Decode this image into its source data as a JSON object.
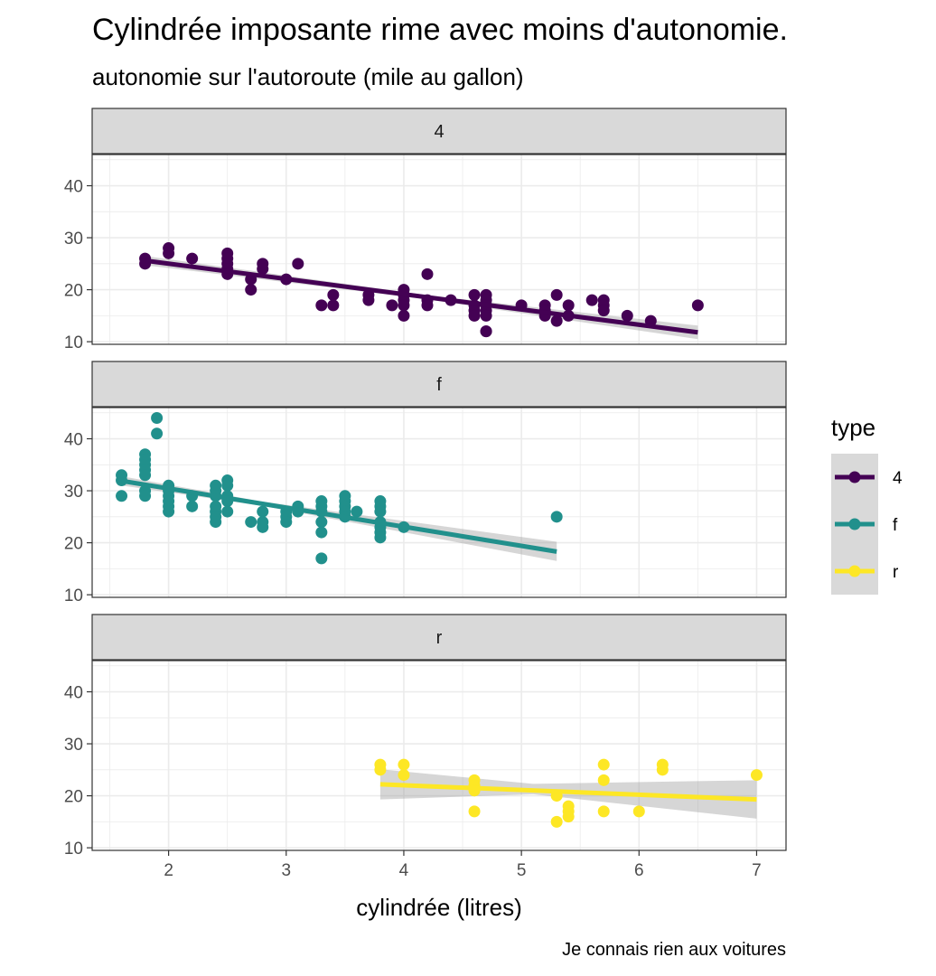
{
  "chart_data": {
    "type": "scatter",
    "title": "Cylindrée imposante rime avec moins d'autonomie.",
    "subtitle": "autonomie sur l'autoroute (mile au gallon)",
    "xlabel": "cylindrée (litres)",
    "ylabel": "",
    "caption": "Je connais rien aux voitures",
    "xlim": [
      1.35,
      7.25
    ],
    "ylim": [
      9.5,
      46.0
    ],
    "x_ticks": [
      2,
      3,
      4,
      5,
      6,
      7
    ],
    "y_ticks": [
      10,
      20,
      30,
      40
    ],
    "grid": true,
    "legend": {
      "title": "type",
      "position": "right",
      "entries": [
        "4",
        "f",
        "r"
      ]
    },
    "panels": [
      {
        "name": "4",
        "color": "#440154",
        "points": [
          [
            1.8,
            26
          ],
          [
            1.8,
            25
          ],
          [
            2.0,
            28
          ],
          [
            2.0,
            27
          ],
          [
            2.2,
            26
          ],
          [
            2.5,
            27
          ],
          [
            2.5,
            26
          ],
          [
            2.5,
            25
          ],
          [
            2.5,
            24
          ],
          [
            2.5,
            23
          ],
          [
            2.7,
            22
          ],
          [
            2.7,
            20
          ],
          [
            2.8,
            25
          ],
          [
            2.8,
            24
          ],
          [
            3.0,
            22
          ],
          [
            3.1,
            25
          ],
          [
            3.3,
            17
          ],
          [
            3.4,
            19
          ],
          [
            3.4,
            17
          ],
          [
            3.7,
            19
          ],
          [
            3.7,
            18
          ],
          [
            3.9,
            17
          ],
          [
            4.0,
            20
          ],
          [
            4.0,
            19
          ],
          [
            4.0,
            18
          ],
          [
            4.0,
            17
          ],
          [
            4.0,
            15
          ],
          [
            4.2,
            23
          ],
          [
            4.2,
            18
          ],
          [
            4.2,
            17
          ],
          [
            4.4,
            18
          ],
          [
            4.6,
            19
          ],
          [
            4.6,
            17
          ],
          [
            4.6,
            16
          ],
          [
            4.6,
            15
          ],
          [
            4.7,
            19
          ],
          [
            4.7,
            18
          ],
          [
            4.7,
            17
          ],
          [
            4.7,
            16
          ],
          [
            4.7,
            15
          ],
          [
            4.7,
            12
          ],
          [
            4.7,
            12
          ],
          [
            5.0,
            17
          ],
          [
            5.2,
            17
          ],
          [
            5.2,
            16
          ],
          [
            5.2,
            15
          ],
          [
            5.3,
            19
          ],
          [
            5.3,
            14
          ],
          [
            5.4,
            17
          ],
          [
            5.4,
            15
          ],
          [
            5.6,
            18
          ],
          [
            5.7,
            18
          ],
          [
            5.7,
            17
          ],
          [
            5.7,
            16
          ],
          [
            5.9,
            15
          ],
          [
            6.1,
            14
          ],
          [
            6.5,
            17
          ]
        ],
        "fit": {
          "x": [
            1.8,
            6.5
          ],
          "y": [
            25.6,
            11.8
          ]
        },
        "band": {
          "x": [
            1.8,
            4.15,
            6.5
          ],
          "lower": [
            24.7,
            18.3,
            10.5
          ],
          "upper": [
            26.5,
            19.1,
            13.1
          ]
        }
      },
      {
        "name": "f",
        "color": "#21908C",
        "points": [
          [
            1.6,
            33
          ],
          [
            1.6,
            32
          ],
          [
            1.6,
            29
          ],
          [
            1.8,
            37
          ],
          [
            1.8,
            36
          ],
          [
            1.8,
            35
          ],
          [
            1.8,
            34
          ],
          [
            1.8,
            33
          ],
          [
            1.8,
            30
          ],
          [
            1.8,
            29
          ],
          [
            1.9,
            44
          ],
          [
            1.9,
            41
          ],
          [
            2.0,
            31
          ],
          [
            2.0,
            30
          ],
          [
            2.0,
            29
          ],
          [
            2.0,
            28
          ],
          [
            2.0,
            27
          ],
          [
            2.0,
            26
          ],
          [
            2.2,
            29
          ],
          [
            2.2,
            27
          ],
          [
            2.4,
            31
          ],
          [
            2.4,
            30
          ],
          [
            2.4,
            29
          ],
          [
            2.4,
            27
          ],
          [
            2.4,
            26
          ],
          [
            2.4,
            25
          ],
          [
            2.4,
            24
          ],
          [
            2.5,
            32
          ],
          [
            2.5,
            31
          ],
          [
            2.5,
            29
          ],
          [
            2.5,
            28
          ],
          [
            2.5,
            26
          ],
          [
            2.7,
            24
          ],
          [
            2.8,
            26
          ],
          [
            2.8,
            24
          ],
          [
            2.8,
            23
          ],
          [
            3.0,
            26
          ],
          [
            3.0,
            25
          ],
          [
            3.0,
            24
          ],
          [
            3.1,
            27
          ],
          [
            3.1,
            26
          ],
          [
            3.3,
            28
          ],
          [
            3.3,
            27
          ],
          [
            3.3,
            26
          ],
          [
            3.3,
            24
          ],
          [
            3.3,
            22
          ],
          [
            3.3,
            17
          ],
          [
            3.5,
            29
          ],
          [
            3.5,
            28
          ],
          [
            3.5,
            27
          ],
          [
            3.5,
            26
          ],
          [
            3.5,
            25
          ],
          [
            3.6,
            26
          ],
          [
            3.8,
            28
          ],
          [
            3.8,
            27
          ],
          [
            3.8,
            26
          ],
          [
            3.8,
            24
          ],
          [
            3.8,
            23
          ],
          [
            3.8,
            22
          ],
          [
            3.8,
            21
          ],
          [
            4.0,
            23
          ],
          [
            5.3,
            25
          ]
        ],
        "fit": {
          "x": [
            1.6,
            5.3
          ],
          "y": [
            31.9,
            18.3
          ]
        },
        "band": {
          "x": [
            1.6,
            2.8,
            5.3
          ],
          "lower": [
            31.0,
            27.1,
            16.5
          ],
          "upper": [
            32.8,
            27.9,
            20.2
          ]
        }
      },
      {
        "name": "r",
        "color": "#FDE725",
        "points": [
          [
            3.8,
            26
          ],
          [
            3.8,
            25
          ],
          [
            4.0,
            26
          ],
          [
            4.0,
            24
          ],
          [
            4.6,
            23
          ],
          [
            4.6,
            22
          ],
          [
            4.6,
            21
          ],
          [
            4.6,
            17
          ],
          [
            5.3,
            20
          ],
          [
            5.3,
            15
          ],
          [
            5.4,
            18
          ],
          [
            5.4,
            17
          ],
          [
            5.4,
            16
          ],
          [
            5.7,
            26
          ],
          [
            5.7,
            23
          ],
          [
            5.7,
            17
          ],
          [
            6.0,
            17
          ],
          [
            6.2,
            26
          ],
          [
            6.2,
            25
          ],
          [
            7.0,
            24
          ]
        ],
        "fit": {
          "x": [
            3.8,
            7.0
          ],
          "y": [
            22.2,
            19.3
          ]
        },
        "band": {
          "x": [
            3.8,
            5.1,
            7.0
          ],
          "lower": [
            19.3,
            20.3,
            15.6
          ],
          "upper": [
            25.1,
            22.3,
            23.0
          ]
        }
      }
    ]
  }
}
